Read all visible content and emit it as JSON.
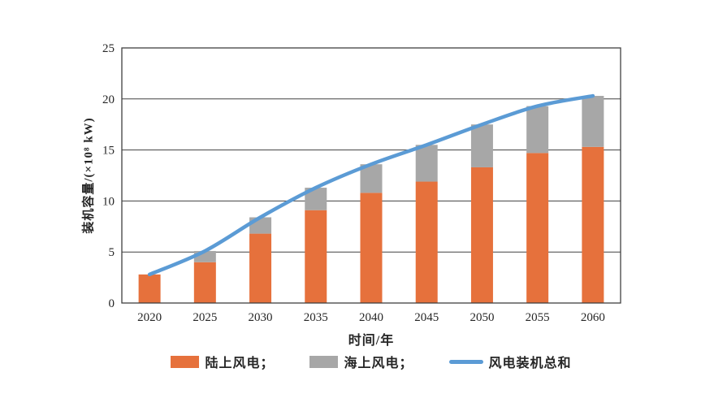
{
  "chart_data": {
    "type": "bar",
    "subtype": "stacked-bar-with-line-overlay",
    "title": "",
    "xlabel": "时间/年",
    "ylabel": "装机容量/(×10⁸ kW)",
    "categories": [
      "2020",
      "2025",
      "2030",
      "2035",
      "2040",
      "2045",
      "2050",
      "2055",
      "2060"
    ],
    "series": [
      {
        "name": "陆上风电",
        "type": "bar",
        "color": "#E6713C",
        "values": [
          2.8,
          4.0,
          6.8,
          9.1,
          10.8,
          11.9,
          13.3,
          14.7,
          15.3
        ]
      },
      {
        "name": "海上风电",
        "type": "bar",
        "color": "#A7A7A7",
        "values": [
          0,
          1.1,
          1.6,
          2.2,
          2.8,
          3.6,
          4.2,
          4.6,
          5.0
        ]
      },
      {
        "name": "风电装机总和",
        "type": "line",
        "color": "#5B9BD5",
        "values": [
          2.8,
          5.1,
          8.4,
          11.3,
          13.6,
          15.5,
          17.5,
          19.3,
          20.3
        ]
      }
    ],
    "ylim": [
      0,
      25
    ],
    "yticks": [
      0,
      5,
      10,
      15,
      20,
      25
    ],
    "grid": true,
    "plot_border": true,
    "legend_position": "bottom"
  },
  "axes": {
    "x_title": "时间/年",
    "y_title": "装机容量/(×10⁸ kW)"
  },
  "legend": {
    "items": [
      {
        "label": "陆上风电；",
        "swatch": "bar",
        "color": "#E6713C"
      },
      {
        "label": "海上风电；",
        "swatch": "bar",
        "color": "#A7A7A7"
      },
      {
        "label": "风电装机总和",
        "swatch": "line",
        "color": "#5B9BD5"
      }
    ]
  },
  "colors": {
    "axis": "#404040",
    "text": "#262626",
    "background": "#ffffff"
  }
}
